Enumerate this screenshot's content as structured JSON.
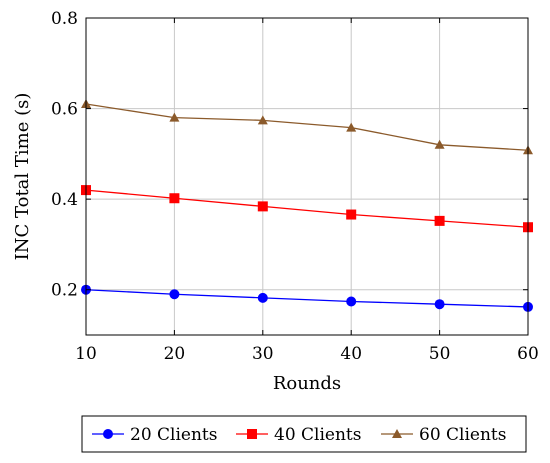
{
  "chart_data": {
    "type": "line",
    "xlabel": "Rounds",
    "ylabel": "INC Total Time (s)",
    "x": [
      10,
      20,
      30,
      40,
      50,
      60
    ],
    "xlim": [
      10,
      60
    ],
    "ylim": [
      0.1,
      0.8
    ],
    "xticks": [
      "10",
      "20",
      "30",
      "40",
      "50",
      "60"
    ],
    "yticks": [
      "0.2",
      "0.4",
      "0.6",
      "0.8"
    ],
    "grid": true,
    "legend_position": "bottom",
    "series": [
      {
        "name": "20 Clients",
        "color": "#0000ff",
        "marker": "circle",
        "values": [
          0.2,
          0.19,
          0.182,
          0.174,
          0.168,
          0.162
        ]
      },
      {
        "name": "40 Clients",
        "color": "#ff0000",
        "marker": "square",
        "values": [
          0.42,
          0.402,
          0.384,
          0.366,
          0.352,
          0.338
        ]
      },
      {
        "name": "60 Clients",
        "color": "#8b5a2b",
        "marker": "triangle",
        "values": [
          0.61,
          0.58,
          0.574,
          0.558,
          0.52,
          0.508
        ]
      }
    ]
  }
}
